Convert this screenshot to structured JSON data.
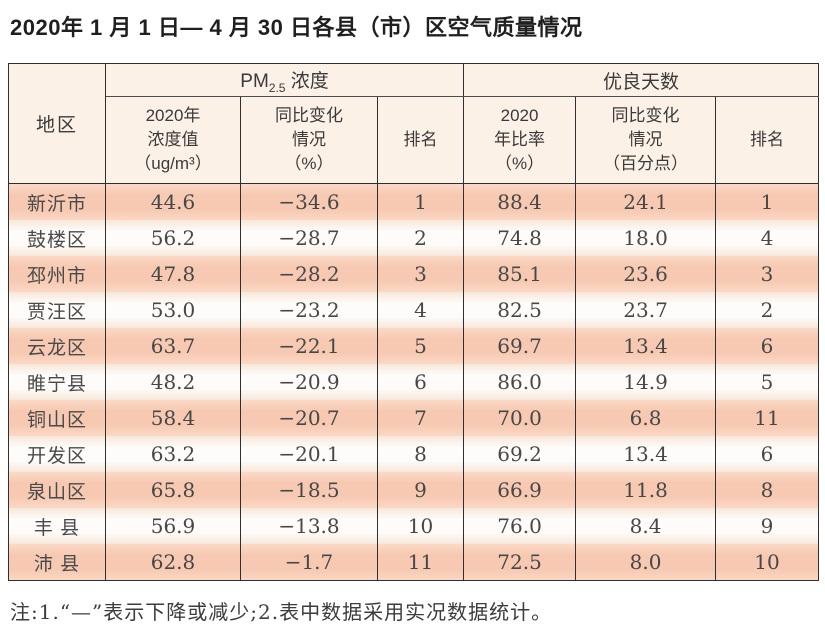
{
  "page": {
    "title": "2020年 1 月 1 日— 4 月 30 日各县（市）区空气质量情况",
    "note": "注:1.“—”表示下降或减少;2.表中数据采用实况数据统计。"
  },
  "table": {
    "region_header": "地区",
    "pm_group": {
      "prefix": "PM",
      "sub": "2.5",
      "suffix": " 浓度"
    },
    "good_group": "优良天数",
    "sub_headers": {
      "pm_value": "2020年\n浓度值\n（ug/m³）",
      "pm_change": "同比变化\n情况\n（%）",
      "pm_rank": "排名",
      "good_ratio": "2020\n年比率\n（%）",
      "good_change": "同比变化\n情况\n（百分点）",
      "good_rank": "排名"
    },
    "rows": [
      {
        "region": "新沂市",
        "pm_value": "44.6",
        "pm_change": "−34.6",
        "pm_rank": "1",
        "good_ratio": "88.4",
        "good_change": "24.1",
        "good_rank": "1"
      },
      {
        "region": "鼓楼区",
        "pm_value": "56.2",
        "pm_change": "−28.7",
        "pm_rank": "2",
        "good_ratio": "74.8",
        "good_change": "18.0",
        "good_rank": "4"
      },
      {
        "region": "邳州市",
        "pm_value": "47.8",
        "pm_change": "−28.2",
        "pm_rank": "3",
        "good_ratio": "85.1",
        "good_change": "23.6",
        "good_rank": "3"
      },
      {
        "region": "贾汪区",
        "pm_value": "53.0",
        "pm_change": "−23.2",
        "pm_rank": "4",
        "good_ratio": "82.5",
        "good_change": "23.7",
        "good_rank": "2"
      },
      {
        "region": "云龙区",
        "pm_value": "63.7",
        "pm_change": "−22.1",
        "pm_rank": "5",
        "good_ratio": "69.7",
        "good_change": "13.4",
        "good_rank": "6"
      },
      {
        "region": "睢宁县",
        "pm_value": "48.2",
        "pm_change": "−20.9",
        "pm_rank": "6",
        "good_ratio": "86.0",
        "good_change": "14.9",
        "good_rank": "5"
      },
      {
        "region": "铜山区",
        "pm_value": "58.4",
        "pm_change": "−20.7",
        "pm_rank": "7",
        "good_ratio": "70.0",
        "good_change": "6.8",
        "good_rank": "11"
      },
      {
        "region": "开发区",
        "pm_value": "63.2",
        "pm_change": "−20.1",
        "pm_rank": "8",
        "good_ratio": "69.2",
        "good_change": "13.4",
        "good_rank": "6"
      },
      {
        "region": "泉山区",
        "pm_value": "65.8",
        "pm_change": "−18.5",
        "pm_rank": "9",
        "good_ratio": "66.9",
        "good_change": "11.8",
        "good_rank": "8"
      },
      {
        "region": "丰 县",
        "pm_value": "56.9",
        "pm_change": "−13.8",
        "pm_rank": "10",
        "good_ratio": "76.0",
        "good_change": "8.4",
        "good_rank": "9"
      },
      {
        "region": "沛 县",
        "pm_value": "62.8",
        "pm_change": "−1.7",
        "pm_rank": "11",
        "good_ratio": "72.5",
        "good_change": "8.0",
        "good_rank": "10"
      }
    ]
  },
  "colors": {
    "row_salmon": "#f7c9b2",
    "row_light": "#fefcfa",
    "header_bg": "#fcf1e7",
    "border": "#2f2f2f"
  }
}
